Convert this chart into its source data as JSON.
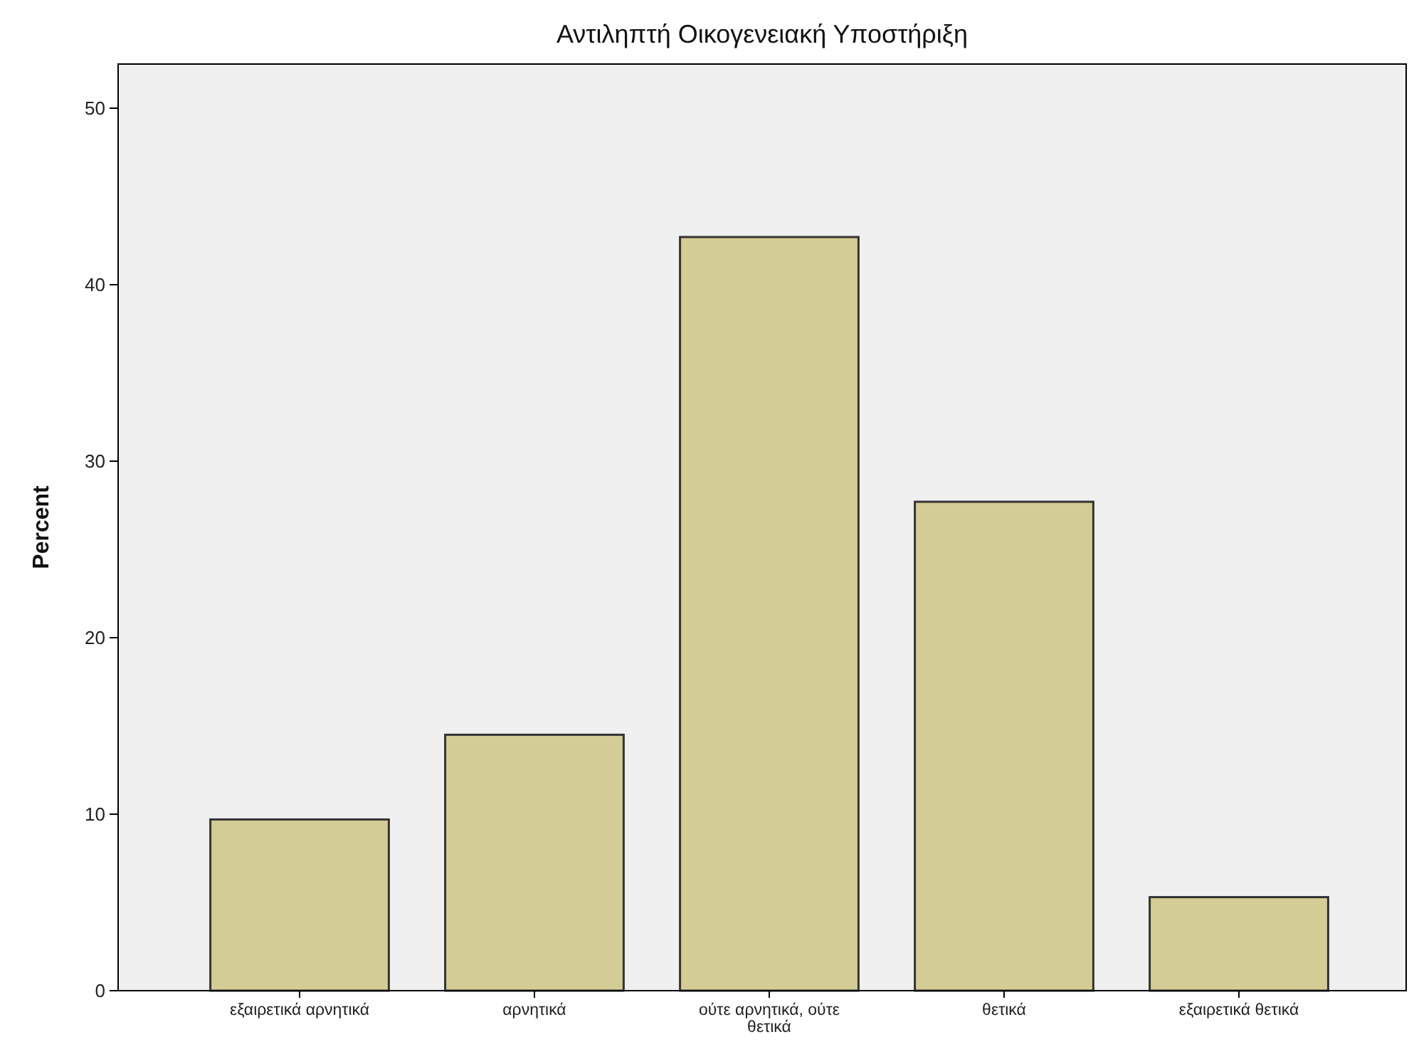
{
  "chart_data": {
    "type": "bar",
    "title": "Αντιληπτή Οικογενειακή Υποστήριξη",
    "ylabel": "Percent",
    "categories": [
      "εξαιρετικά αρνητικά",
      "αρνητικά",
      "ούτε αρνητικά, ούτε θετικά",
      "θετικά",
      "εξαιρετικά θετικά"
    ],
    "values": [
      9.7,
      14.5,
      42.7,
      27.7,
      5.3
    ],
    "color": "#d3cd95",
    "ylim": [
      0,
      52.5
    ],
    "yticks": [
      0,
      10,
      20,
      30,
      40,
      50
    ],
    "grid": false
  }
}
